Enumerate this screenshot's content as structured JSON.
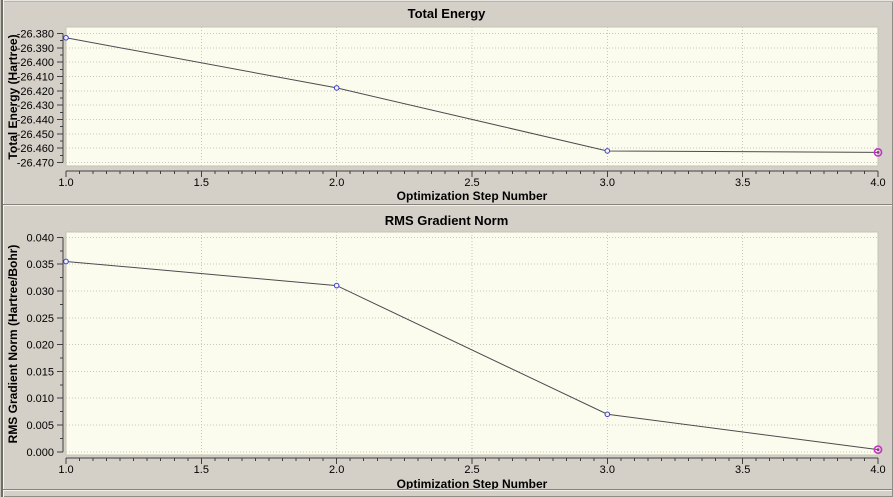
{
  "palette": {
    "window_bg": "#d4d0c8",
    "plot_bg": "#fcfcee",
    "grid": "#c8c8b8",
    "plot_border": "#c3c3b3",
    "axis": "#404040",
    "line": "#4b4b50",
    "marker_stroke": "#4040c0",
    "marker_fill": "#f0f0ff",
    "last_marker_ring": "#c435c4",
    "last_marker_core": "#8a3c8a",
    "text": "#000000"
  },
  "chart_data": [
    {
      "type": "line",
      "title": "Total Energy",
      "xlabel": "Optimization Step Number",
      "ylabel": "Total Energy (Hartree)",
      "x": [
        1,
        2,
        3,
        4
      ],
      "y": [
        -26.383,
        -26.418,
        -26.462,
        -26.463
      ],
      "xlim": [
        1,
        4
      ],
      "ylim": [
        -26.4725,
        -26.3755
      ],
      "x_tick_values": [
        1.0,
        1.5,
        2.0,
        2.5,
        3.0,
        3.5,
        4.0
      ],
      "x_tick_labels": [
        "1.0",
        "1.5",
        "2.0",
        "2.5",
        "3.0",
        "3.5",
        "4.0"
      ],
      "x_minor_step": 0.05,
      "y_tick_values": [
        -26.38,
        -26.39,
        -26.4,
        -26.41,
        -26.42,
        -26.43,
        -26.44,
        -26.45,
        -26.46,
        -26.47
      ],
      "y_tick_labels": [
        "-26.380",
        "-26.390",
        "-26.400",
        "-26.410",
        "-26.420",
        "-26.430",
        "-26.440",
        "-26.450",
        "-26.460",
        "-26.470"
      ],
      "y_minor_step": 0.005,
      "grid": true,
      "legend_position": "none"
    },
    {
      "type": "line",
      "title": "RMS Gradient Norm",
      "xlabel": "Optimization Step Number",
      "ylabel": "RMS Gradient Norm (Hartree/Bohr)",
      "x": [
        1,
        2,
        3,
        4
      ],
      "y": [
        0.0355,
        0.031,
        0.007,
        0.0004
      ],
      "xlim": [
        1,
        4
      ],
      "ylim": [
        -0.0006,
        0.041
      ],
      "x_tick_values": [
        1.0,
        1.5,
        2.0,
        2.5,
        3.0,
        3.5,
        4.0
      ],
      "x_tick_labels": [
        "1.0",
        "1.5",
        "2.0",
        "2.5",
        "3.0",
        "3.5",
        "4.0"
      ],
      "x_minor_step": 0.05,
      "y_tick_values": [
        0.04,
        0.035,
        0.03,
        0.025,
        0.02,
        0.015,
        0.01,
        0.005,
        0.0
      ],
      "y_tick_labels": [
        "0.040",
        "0.035",
        "0.030",
        "0.025",
        "0.020",
        "0.015",
        "0.010",
        "0.005",
        "0.000"
      ],
      "y_minor_step": 0.0025,
      "grid": true,
      "legend_position": "none"
    }
  ]
}
